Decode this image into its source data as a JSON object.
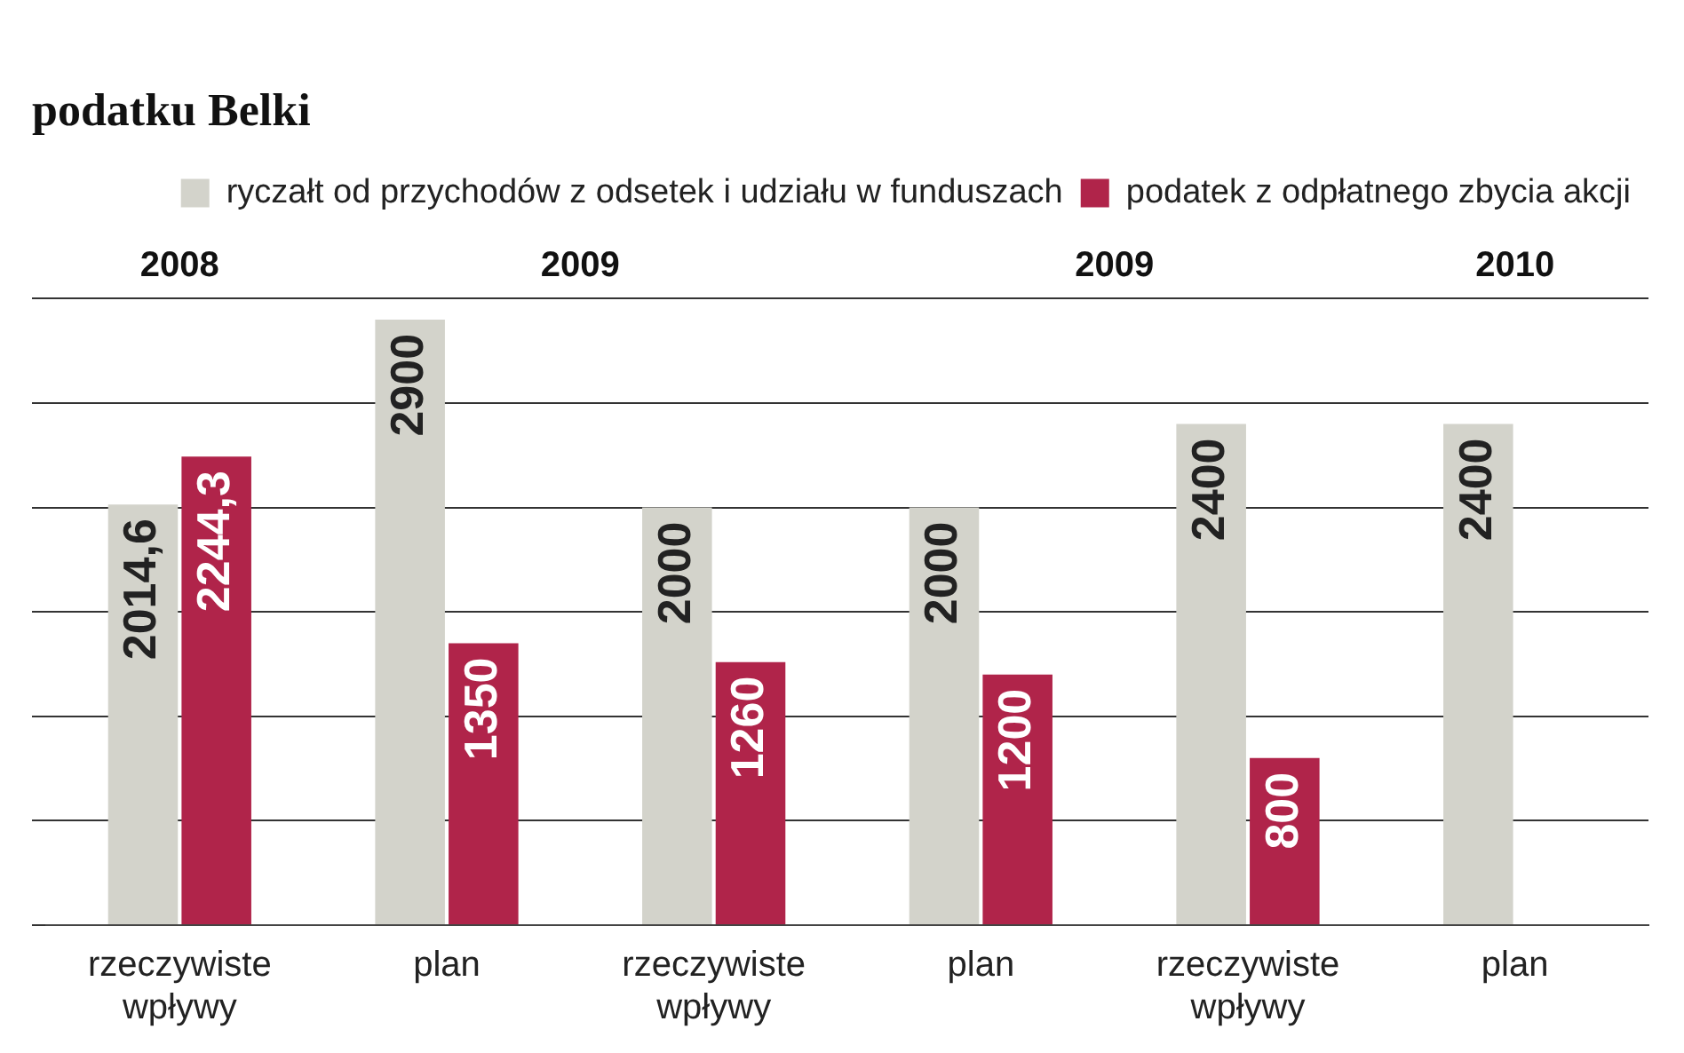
{
  "chart_data": {
    "type": "bar",
    "title": "podatku Belki",
    "categories": [
      "rzeczywiste wpływy",
      "plan",
      "rzeczywiste wpływy",
      "plan",
      "rzeczywiste wpływy",
      "plan"
    ],
    "series": [
      {
        "name": "ryczałt od przychodów z odsetek i udziału w funduszach",
        "color": "#d3d3cb",
        "values": [
          2014.6,
          2900,
          2000,
          2000,
          2400,
          2400
        ],
        "value_labels": [
          "2014,6",
          "2900",
          "2000",
          "2000",
          "2400",
          "2400"
        ]
      },
      {
        "name": "podatek z odpłatnego zbycia akcji",
        "color": "#b0244a",
        "values": [
          2244.3,
          1350,
          1260,
          1200,
          800,
          null
        ],
        "value_labels": [
          "2244,3",
          "1350",
          "1260",
          "1200",
          "800",
          null
        ]
      }
    ],
    "annotations": [
      "2008",
      "2009",
      "2009",
      "2010"
    ],
    "ylim": [
      0,
      3000
    ],
    "yticks": [
      {
        "value": 0,
        "label": null
      },
      {
        "value": 500,
        "label": null
      },
      {
        "value": 1000,
        "label": null
      },
      {
        "value": 1500,
        "label": null
      },
      {
        "value": 2000,
        "label": null
      },
      {
        "value": 2500,
        "label": null
      },
      {
        "value": 3000,
        "label": null
      }
    ],
    "grid": "y",
    "tick_labels": "x",
    "legend": "top right"
  }
}
